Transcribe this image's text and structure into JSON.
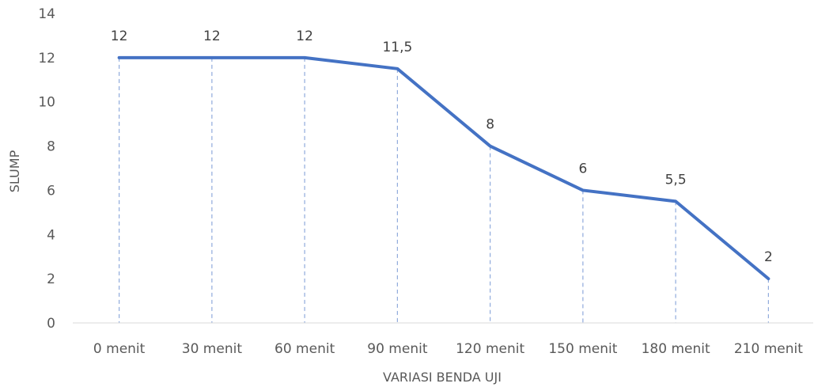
{
  "chart_data": {
    "type": "line",
    "categories": [
      "0 menit",
      "30 menit",
      "60 menit",
      "90 menit",
      "120 menit",
      "150 menit",
      "180 menit",
      "210 menit"
    ],
    "values": [
      12,
      12,
      12,
      11.5,
      8,
      6,
      5.5,
      2
    ],
    "data_labels": [
      "12",
      "12",
      "12",
      "11,5",
      "8",
      "6",
      "5,5",
      "2"
    ],
    "title": "",
    "xlabel": "VARIASI BENDA UJI",
    "ylabel": "SLUMP",
    "ylim": [
      0,
      14
    ],
    "yticks": [
      "0",
      "2",
      "4",
      "6",
      "8",
      "10",
      "12",
      "14"
    ],
    "grid": false,
    "drop_lines": true,
    "legend": "none",
    "line_color": "#4472C4",
    "drop_line_color": "#8FAADC",
    "axis_color": "#D9D9D9"
  }
}
